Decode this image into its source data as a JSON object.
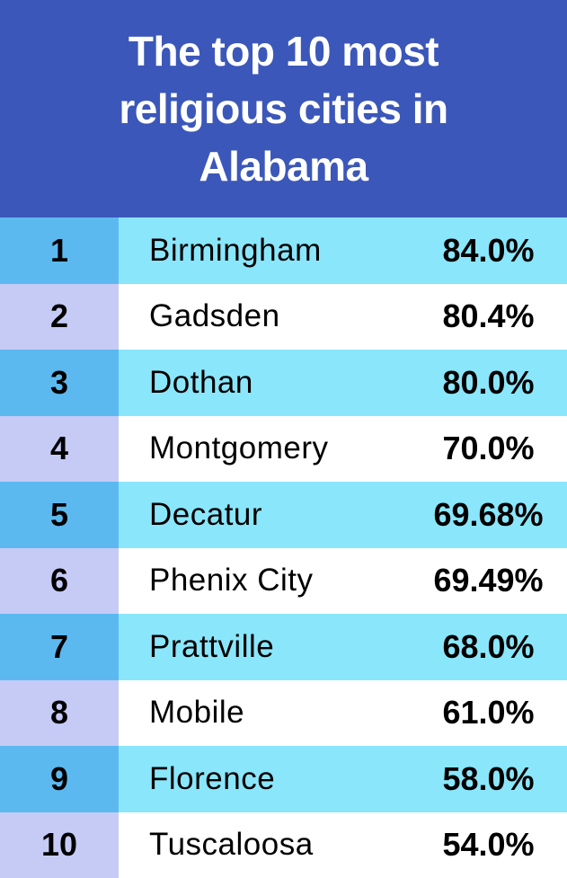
{
  "header": {
    "title": "The top 10 most religious cities in Alabama"
  },
  "table": {
    "rows": [
      [
        "1",
        "Birmingham",
        "84.0%"
      ],
      [
        "2",
        "Gadsden",
        "80.4%"
      ],
      [
        "3",
        "Dothan",
        "80.0%"
      ],
      [
        "4",
        "Montgomery",
        "70.0%"
      ],
      [
        "5",
        "Decatur",
        "69.68%"
      ],
      [
        "6",
        "Phenix City",
        "69.49%"
      ],
      [
        "7",
        "Prattville",
        "68.0%"
      ],
      [
        "8",
        "Mobile",
        "61.0%"
      ],
      [
        "9",
        "Florence",
        "58.0%"
      ],
      [
        "10",
        "Tuscaloosa",
        "54.0%"
      ]
    ]
  }
}
